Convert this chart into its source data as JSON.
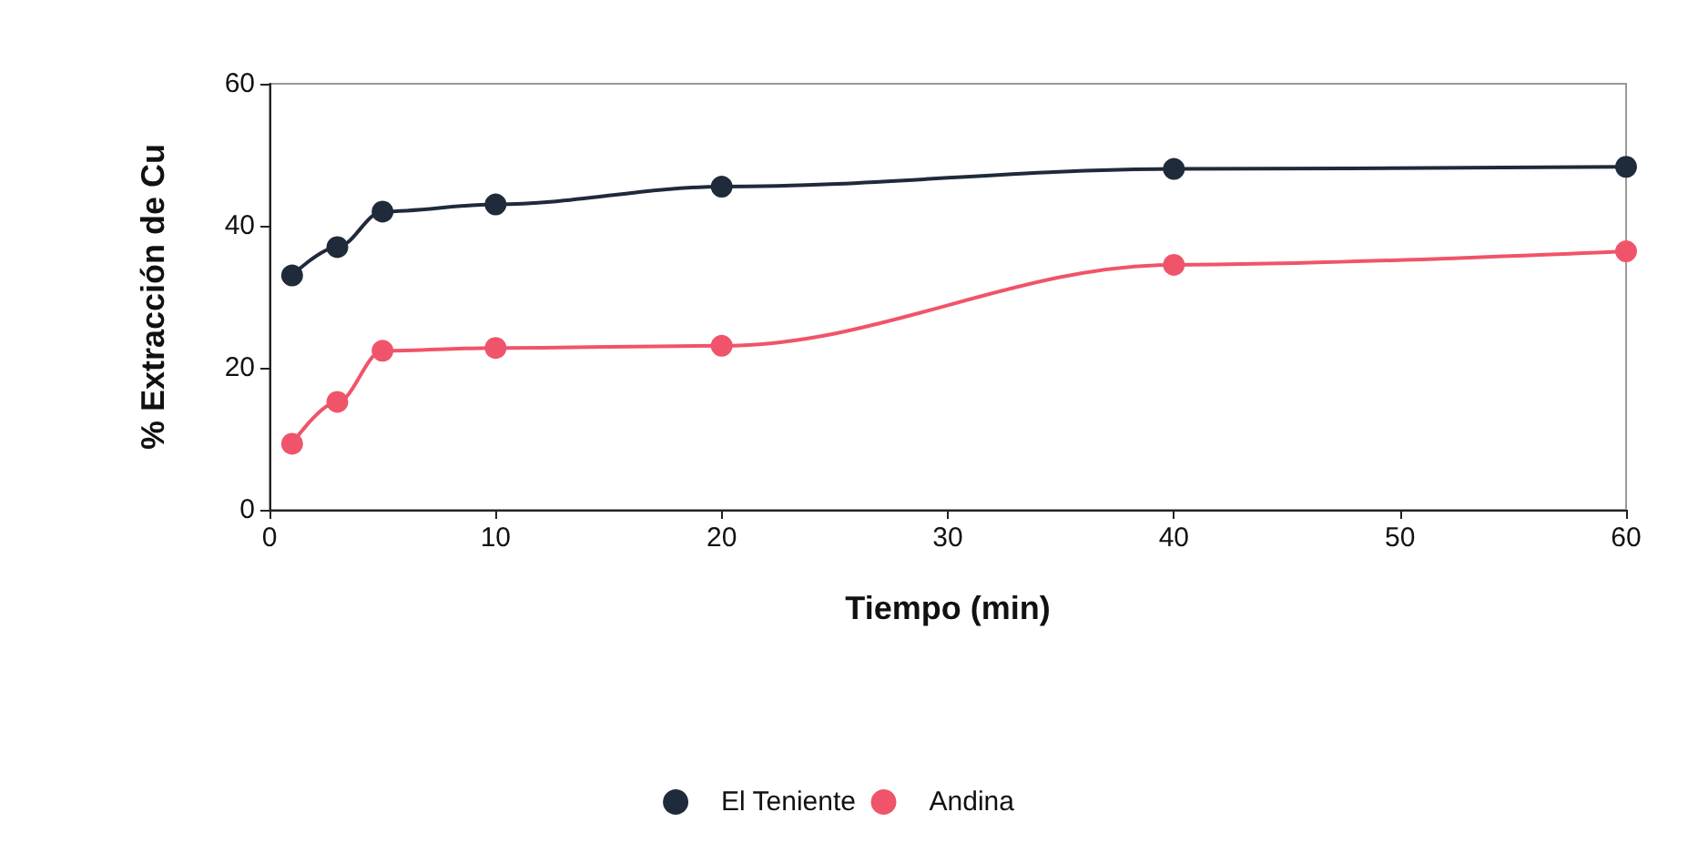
{
  "chart_data": {
    "type": "line",
    "xlabel": "Tiempo (min)",
    "ylabel": "% Extracción de Cu",
    "x": [
      1,
      3,
      5,
      10,
      20,
      40,
      60
    ],
    "series": [
      {
        "name": "El Teniente",
        "color": "#1f2a3a",
        "values": [
          33,
          37,
          42,
          43,
          45.5,
          48,
          48.3
        ]
      },
      {
        "name": "Andina",
        "color": "#f0546a",
        "values": [
          9.3,
          15.2,
          22.4,
          22.8,
          23.1,
          34.5,
          36.4
        ]
      }
    ],
    "xlim": [
      0,
      60
    ],
    "xticks": [
      0,
      10,
      20,
      30,
      40,
      50,
      60
    ],
    "ylim": [
      0,
      60
    ],
    "yticks": [
      0,
      20,
      40,
      60
    ],
    "grid": false,
    "legend": "bottom",
    "marker": "circle",
    "line_style": "solid"
  }
}
